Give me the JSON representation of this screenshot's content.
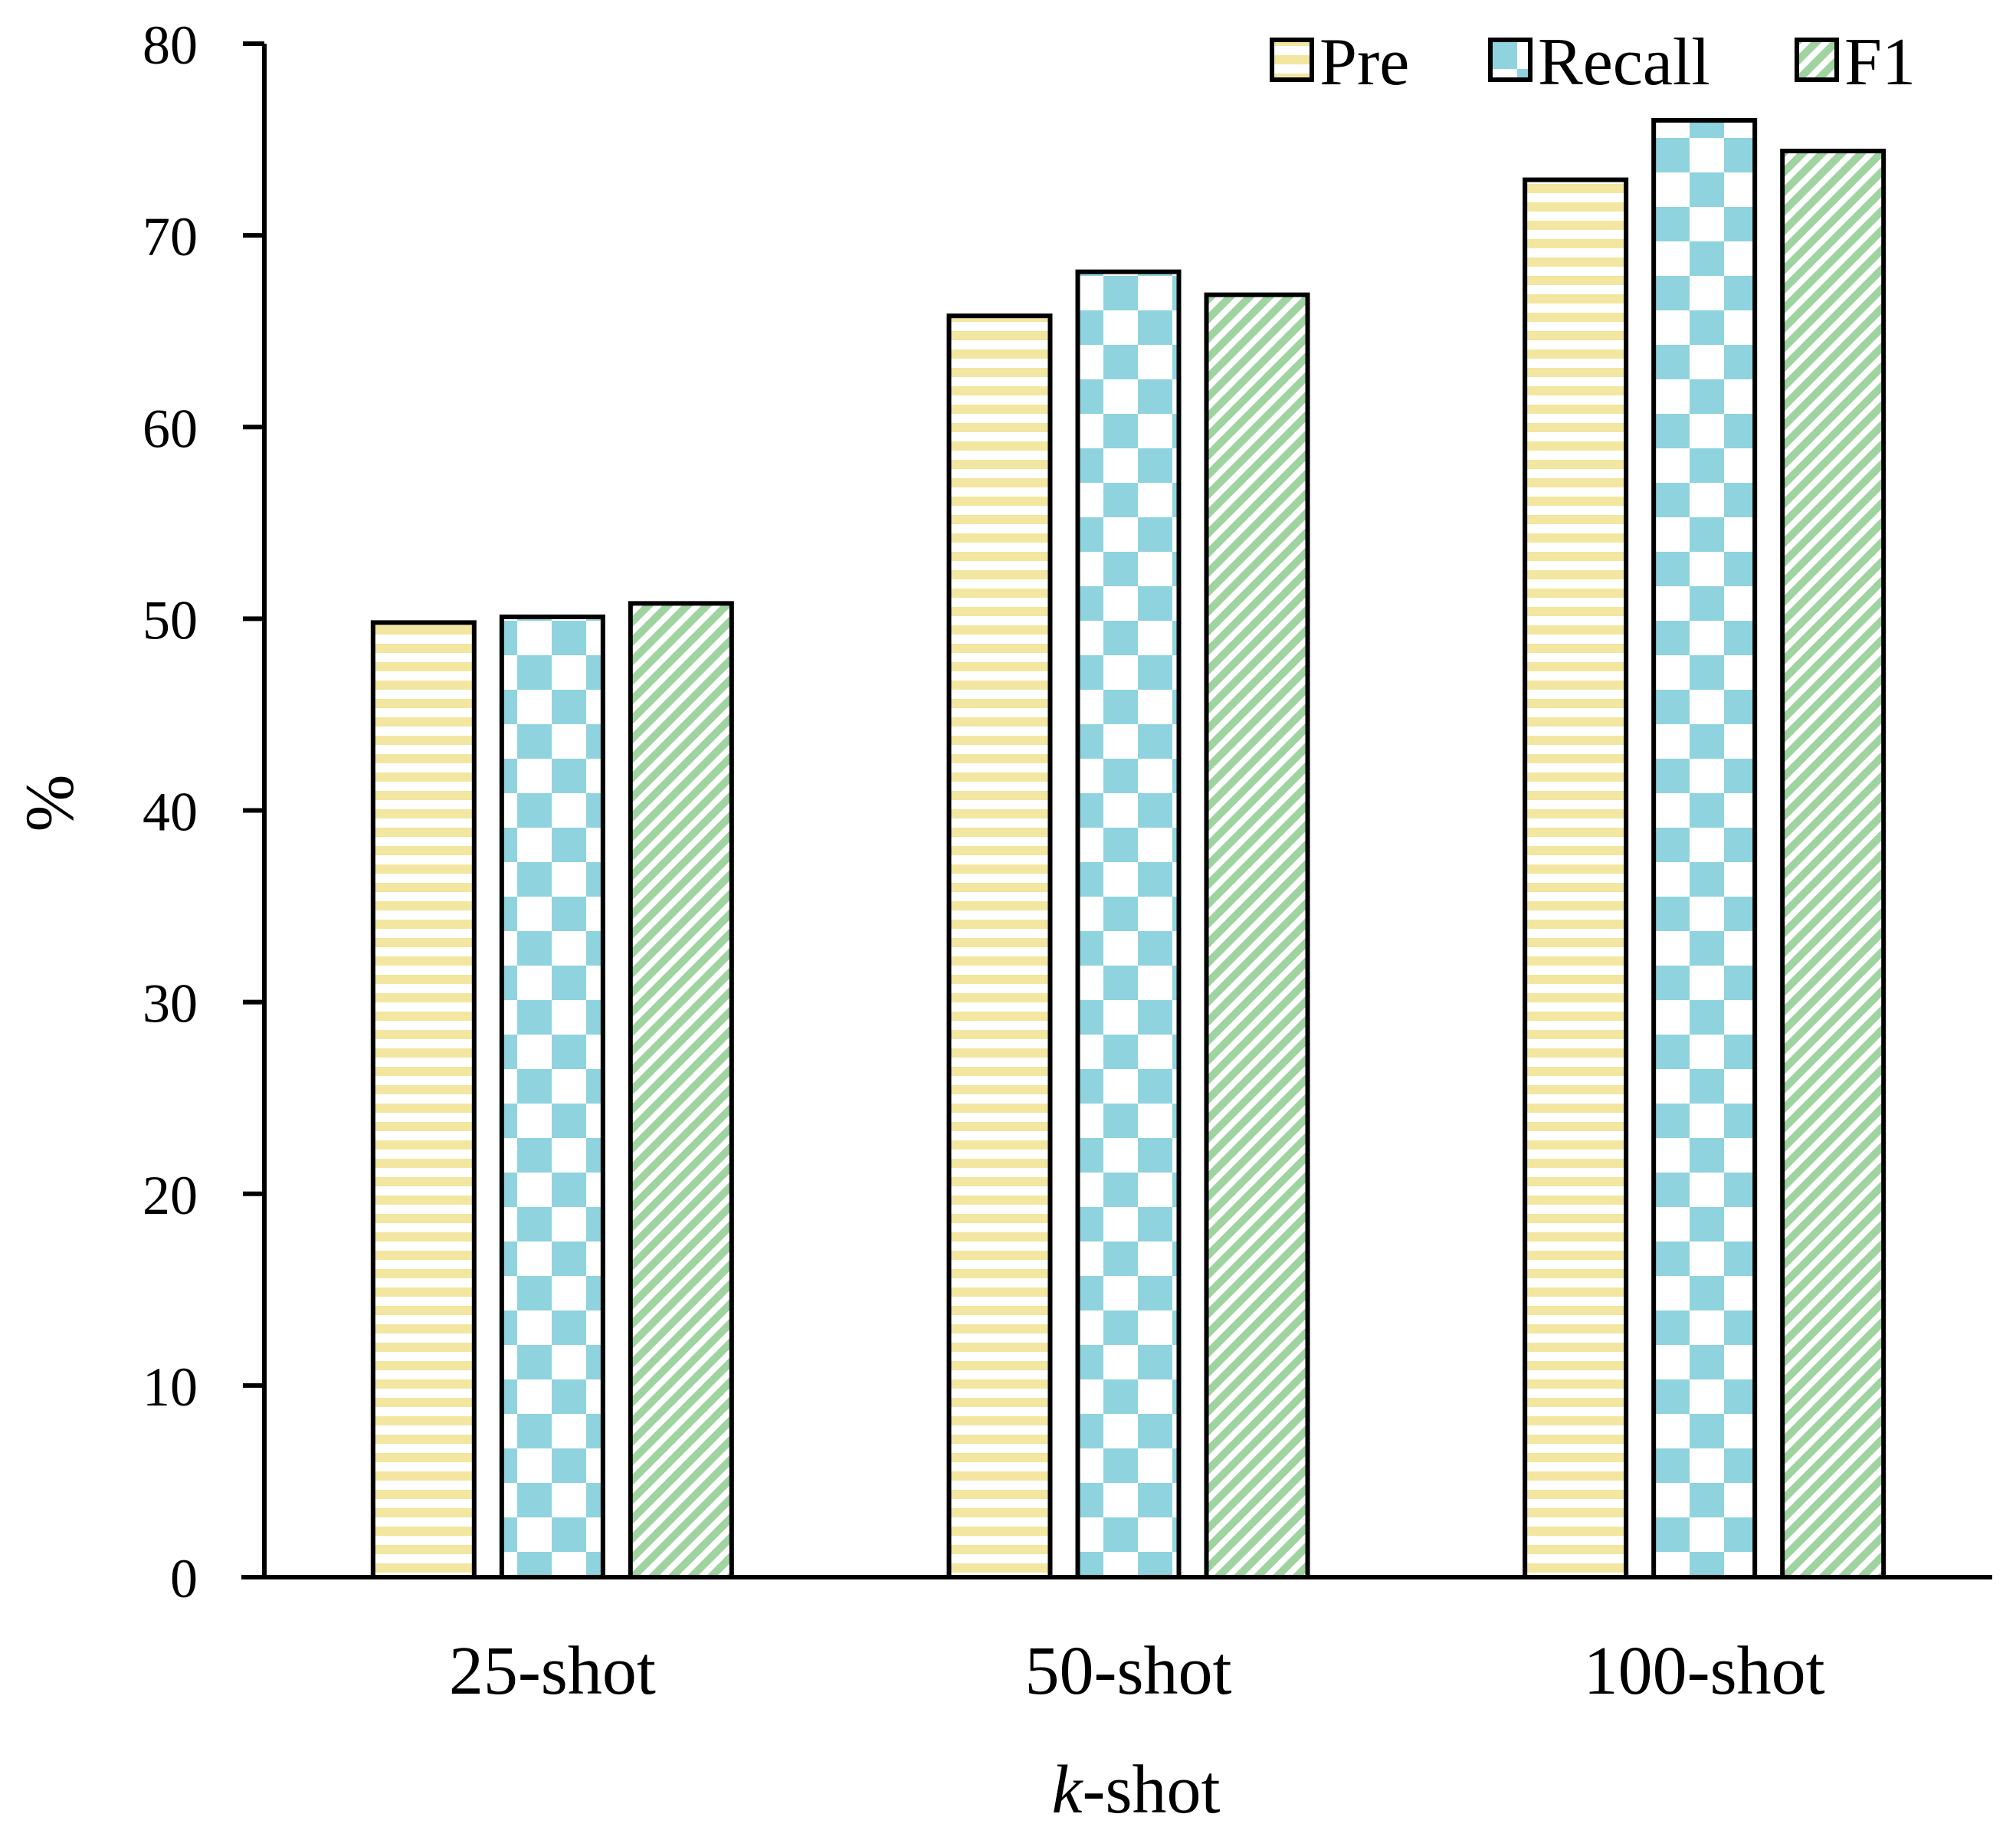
{
  "chart_data": {
    "type": "bar",
    "title": "",
    "xlabel_italic": "k",
    "xlabel_rest": "-shot",
    "ylabel": "%",
    "ylim": [
      0,
      80
    ],
    "yticks": [
      0,
      10,
      20,
      30,
      40,
      50,
      60,
      70,
      80
    ],
    "categories": [
      "25-shot",
      "50-shot",
      "100-shot"
    ],
    "series": [
      {
        "name": "Pre",
        "values": [
          49.8,
          65.8,
          72.9
        ],
        "color": "#f2e6a0",
        "pattern": "horizontal-stripes"
      },
      {
        "name": "Recall",
        "values": [
          50.1,
          68.1,
          76.0
        ],
        "color": "#8ed3de",
        "pattern": "checkerboard"
      },
      {
        "name": "F1",
        "values": [
          50.8,
          66.9,
          74.4
        ],
        "color": "#9fd3a0",
        "pattern": "diagonal-stripes"
      }
    ],
    "legend_position": "top-right",
    "grid": false
  }
}
